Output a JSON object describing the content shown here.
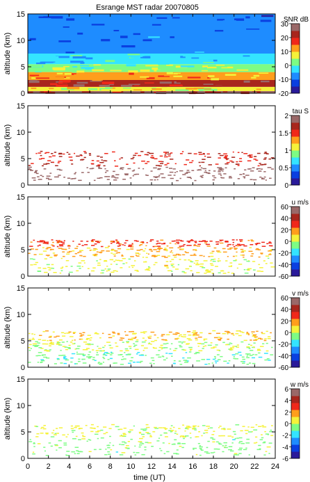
{
  "chart_data": {
    "type": "heatmap",
    "title": "Esrange MST radar 20070805",
    "xlabel": "time (UT)",
    "xlim": [
      0,
      24
    ],
    "x_ticks": [
      "0",
      "2",
      "4",
      "6",
      "8",
      "10",
      "12",
      "14",
      "16",
      "18",
      "20",
      "22",
      "24"
    ],
    "ylabel": "altitude (km)",
    "ylim": [
      0,
      15
    ],
    "y_ticks": [
      "0",
      "5",
      "10",
      "15"
    ],
    "colormap": [
      "#2a1a9a",
      "#0a3fe0",
      "#1e8cff",
      "#34e4ff",
      "#7dfc84",
      "#f5f23a",
      "#ff9e1c",
      "#f0281a",
      "#a8261d",
      "#9a6868"
    ],
    "panels": [
      {
        "quantity": "SNR",
        "colorbar_label": "SNR dB",
        "clim": [
          -20,
          30
        ],
        "colorbar_ticks": [
          "30",
          "20",
          "10",
          "0",
          "-10",
          "-20"
        ],
        "fill": "full",
        "layers": [
          {
            "from_km": 0.0,
            "to_km": 0.4,
            "value": 25
          },
          {
            "from_km": 0.4,
            "to_km": 1.2,
            "value": 8
          },
          {
            "from_km": 1.2,
            "to_km": 2.5,
            "value": 24
          },
          {
            "from_km": 2.5,
            "to_km": 4.0,
            "value": 12
          },
          {
            "from_km": 4.0,
            "to_km": 5.5,
            "value": 3
          },
          {
            "from_km": 5.5,
            "to_km": 7.5,
            "value": -4
          },
          {
            "from_km": 7.5,
            "to_km": 15.0,
            "value": -10
          }
        ]
      },
      {
        "quantity": "tau",
        "colorbar_label": "tau S",
        "clim": [
          0,
          2
        ],
        "colorbar_ticks": [
          "2",
          "1.5",
          "1",
          "0.5",
          "0"
        ],
        "fill": "sparse",
        "layers": [
          {
            "from_km": 0.8,
            "to_km": 3.5,
            "value": 1.95
          },
          {
            "from_km": 3.5,
            "to_km": 6.5,
            "value": 1.6
          }
        ]
      },
      {
        "quantity": "u",
        "colorbar_label": "u m/s",
        "clim": [
          -60,
          60
        ],
        "colorbar_ticks": [
          "60",
          "40",
          "20",
          "0",
          "-20",
          "-40",
          "-60"
        ],
        "fill": "sparse",
        "layers": [
          {
            "from_km": 0.5,
            "to_km": 3.5,
            "value": 5
          },
          {
            "from_km": 3.5,
            "to_km": 5.5,
            "value": 15
          },
          {
            "from_km": 5.5,
            "to_km": 7.0,
            "value": 28
          }
        ]
      },
      {
        "quantity": "v",
        "colorbar_label": "v m/s",
        "clim": [
          -60,
          60
        ],
        "colorbar_ticks": [
          "60",
          "40",
          "20",
          "0",
          "-20",
          "-40",
          "-60"
        ],
        "fill": "sparse",
        "layers": [
          {
            "from_km": 0.5,
            "to_km": 3.0,
            "value": -8
          },
          {
            "from_km": 3.0,
            "to_km": 5.0,
            "value": 0
          },
          {
            "from_km": 5.0,
            "to_km": 7.0,
            "value": 12
          }
        ]
      },
      {
        "quantity": "w",
        "colorbar_label": "w m/s",
        "clim": [
          -6,
          6
        ],
        "colorbar_ticks": [
          "6",
          "4",
          "2",
          "0",
          "-2",
          "-4",
          "-6"
        ],
        "fill": "sparse",
        "layers": [
          {
            "from_km": 0.5,
            "to_km": 4.0,
            "value": -0.5
          },
          {
            "from_km": 4.0,
            "to_km": 6.5,
            "value": 0.3
          }
        ]
      }
    ]
  }
}
